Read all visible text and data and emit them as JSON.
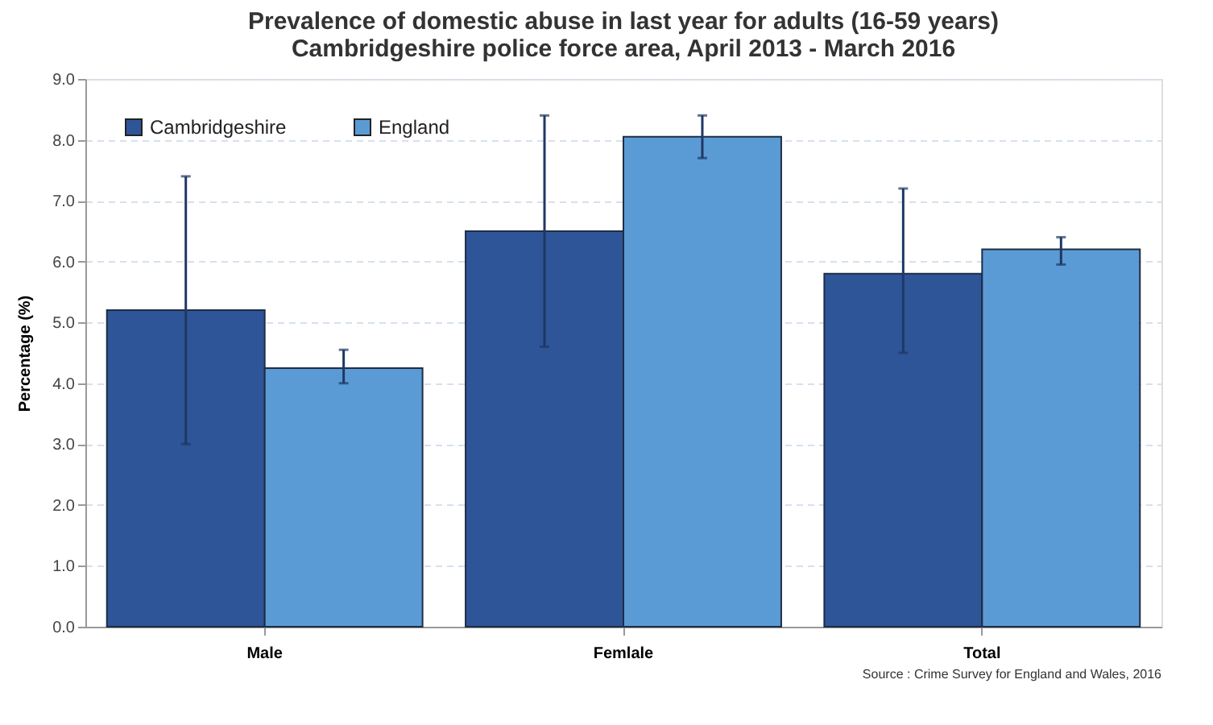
{
  "chart_data": {
    "type": "bar",
    "title": "Prevalence of domestic abuse in last year for adults (16-59 years)\nCambridgeshire police force area, April 2013 - March 2016",
    "ylabel": "Percentage (%)",
    "categories": [
      "Male",
      "Femlale",
      "Total"
    ],
    "series": [
      {
        "name": "Cambridgeshire",
        "color": "#2e5597",
        "values": [
          5.2,
          6.5,
          5.8
        ],
        "errors": [
          [
            3.0,
            7.4
          ],
          [
            4.6,
            8.4
          ],
          [
            4.5,
            7.2
          ]
        ]
      },
      {
        "name": "England",
        "color": "#5b9bd5",
        "values": [
          4.25,
          8.05,
          6.2
        ],
        "errors": [
          [
            4.0,
            4.55
          ],
          [
            7.7,
            8.4
          ],
          [
            5.95,
            6.4
          ]
        ]
      }
    ],
    "ylim": [
      0,
      9
    ],
    "yticks": [
      {
        "value": 0,
        "label": "0.0"
      },
      {
        "value": 1,
        "label": "1.0"
      },
      {
        "value": 2,
        "label": "2.0"
      },
      {
        "value": 3,
        "label": "3.0"
      },
      {
        "value": 4,
        "label": "4.0"
      },
      {
        "value": 5,
        "label": "5.0"
      },
      {
        "value": 6,
        "label": "6.0"
      },
      {
        "value": 7,
        "label": "7.0"
      },
      {
        "value": 8,
        "label": "8.0"
      },
      {
        "value": 9,
        "label": "9.0"
      }
    ],
    "grid": "y",
    "legend": "top left",
    "annotations": [
      "Source : Crime Survey for England and Wales, 2016"
    ]
  }
}
